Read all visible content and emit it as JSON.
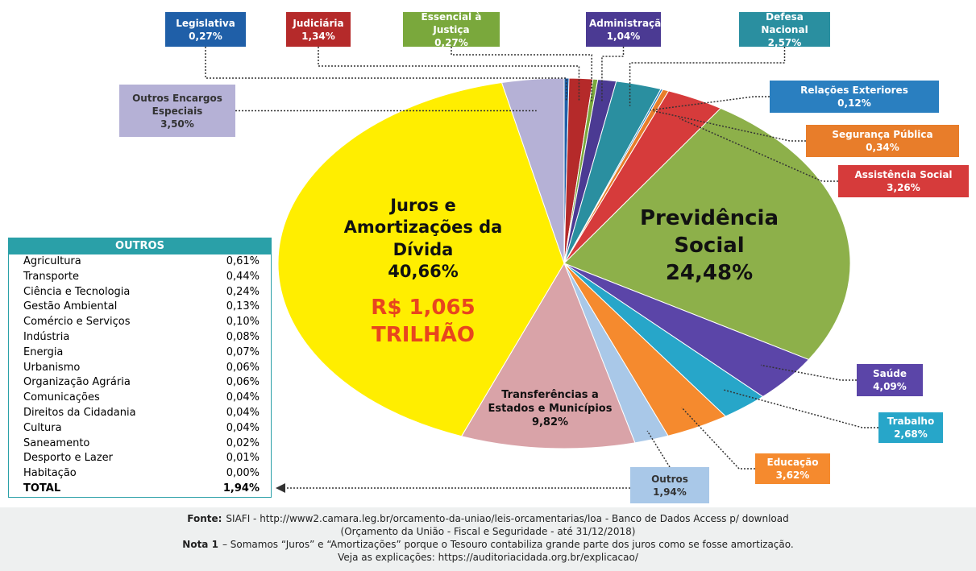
{
  "chart_data": {
    "type": "pie",
    "categories": [
      "Legislativa",
      "Judiciária",
      "Essencial à Justiça",
      "Administração",
      "Defesa Nacional",
      "Relações Exteriores",
      "Segurança Pública",
      "Assistência Social",
      "Previdência Social",
      "Saúde",
      "Trabalho",
      "Educação",
      "Outros",
      "Transferências a Estados e Municípios",
      "Juros e Amortizações da Dívida",
      "Outros Encargos Especiais"
    ],
    "values": [
      0.27,
      1.34,
      0.27,
      1.04,
      2.57,
      0.12,
      0.34,
      3.26,
      24.48,
      4.09,
      2.68,
      3.62,
      1.94,
      9.82,
      40.66,
      3.5
    ],
    "value_labels": [
      "0,27%",
      "1,34%",
      "0,27%",
      "1,04%",
      "2,57%",
      "0,12%",
      "0,34%",
      "3,26%",
      "24,48%",
      "4,09%",
      "2,68%",
      "3,62%",
      "1,94%",
      "9,82%",
      "40,66%",
      "3,50%"
    ],
    "colors": [
      "#1f5fa8",
      "#b52a2a",
      "#7aa83c",
      "#4b3a93",
      "#2a8fa0",
      "#2a7fc0",
      "#e87d2a",
      "#d63b3b",
      "#8db04a",
      "#5b45a8",
      "#27a6c9",
      "#f58a2e",
      "#a9c8e8",
      "#d9a3a8",
      "#ffee00",
      "#b5b1d6"
    ],
    "annotation": "R$ 1,065 TRILHÃO"
  },
  "table": {
    "title": "OUTROS",
    "rows": [
      [
        "Agricultura",
        "0,61%"
      ],
      [
        "Transporte",
        "0,44%"
      ],
      [
        "Ciência e Tecnologia",
        "0,24%"
      ],
      [
        "Gestão Ambiental",
        "0,13%"
      ],
      [
        "Comércio e Serviços",
        "0,10%"
      ],
      [
        "Indústria",
        "0,08%"
      ],
      [
        "Energia",
        "0,07%"
      ],
      [
        "Urbanismo",
        "0,06%"
      ],
      [
        "Organização Agrária",
        "0,06%"
      ],
      [
        "Comunicações",
        "0,04%"
      ],
      [
        "Direitos da Cidadania",
        "0,04%"
      ],
      [
        "Cultura",
        "0,04%"
      ],
      [
        "Saneamento",
        "0,02%"
      ],
      [
        "Desporto e Lazer",
        "0,01%"
      ],
      [
        "Habitação",
        "0,00%"
      ],
      [
        "TOTAL",
        "1,94%"
      ]
    ]
  },
  "footer": {
    "lines": [
      {
        "bold": "Fonte:",
        "text": "SIAFI - http://www2.camara.leg.br/orcamento-da-uniao/leis-orcamentarias/loa - Banco de Dados Access p/ download"
      },
      {
        "text": "(Orçamento da União - Fiscal e Seguridade - até 31/12/2018)"
      },
      {
        "bold": "Nota 1",
        "text": "– Somamos “Juros” e “Amortizações” porque o Tesouro contabiliza grande parte dos juros como se fosse amortização."
      },
      {
        "text": "Veja as explicações: https://auditoriacidada.org.br/explicacao/"
      }
    ]
  }
}
